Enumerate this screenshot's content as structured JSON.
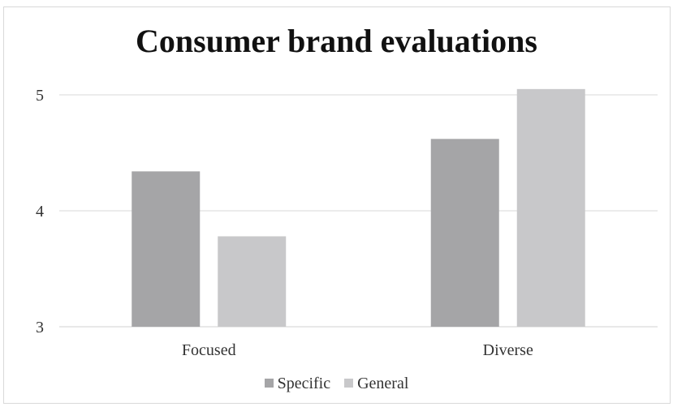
{
  "chart_data": {
    "type": "bar",
    "title": "Consumer brand evaluations",
    "categories": [
      "Focused",
      "Diverse"
    ],
    "series": [
      {
        "name": "Specific",
        "values": [
          4.34,
          4.62
        ],
        "color": "#a5a5a7"
      },
      {
        "name": "General",
        "values": [
          3.78,
          5.05
        ],
        "color": "#c8c8ca"
      }
    ],
    "yticks": [
      3,
      4,
      5
    ],
    "ylim": [
      3,
      5.2
    ],
    "grid": true,
    "legend_position": "bottom"
  }
}
